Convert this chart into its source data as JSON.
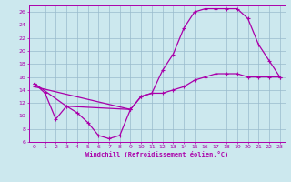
{
  "xlabel": "Windchill (Refroidissement éolien,°C)",
  "bg_color": "#cce8ee",
  "line_color": "#aa00aa",
  "grid_color": "#99bbcc",
  "xlim": [
    -0.5,
    23.5
  ],
  "ylim": [
    6,
    27
  ],
  "xticks": [
    0,
    1,
    2,
    3,
    4,
    5,
    6,
    7,
    8,
    9,
    10,
    11,
    12,
    13,
    14,
    15,
    16,
    17,
    18,
    19,
    20,
    21,
    22,
    23
  ],
  "yticks": [
    6,
    8,
    10,
    12,
    14,
    16,
    18,
    20,
    22,
    24,
    26
  ],
  "line1_x": [
    0,
    1,
    2,
    3,
    4,
    5,
    6,
    7,
    8,
    9
  ],
  "line1_y": [
    15,
    13.5,
    9.5,
    11.5,
    10.5,
    9,
    7,
    6.5,
    7,
    11
  ],
  "line2_x": [
    0,
    3,
    9,
    10,
    11,
    12,
    13,
    14,
    15,
    16,
    17,
    18,
    19,
    20,
    21,
    22,
    23
  ],
  "line2_y": [
    15,
    11.5,
    11,
    13,
    13.5,
    17,
    19.5,
    23.5,
    26,
    26.5,
    26.5,
    26.5,
    26.5,
    25,
    21,
    18.5,
    16
  ],
  "line3_x": [
    0,
    9,
    10,
    11,
    12,
    13,
    14,
    15,
    16,
    17,
    18,
    19,
    20,
    21,
    22,
    23
  ],
  "line3_y": [
    14.5,
    11,
    13,
    13.5,
    13.5,
    14,
    14.5,
    15.5,
    16,
    16.5,
    16.5,
    16.5,
    16,
    16,
    16,
    16
  ]
}
